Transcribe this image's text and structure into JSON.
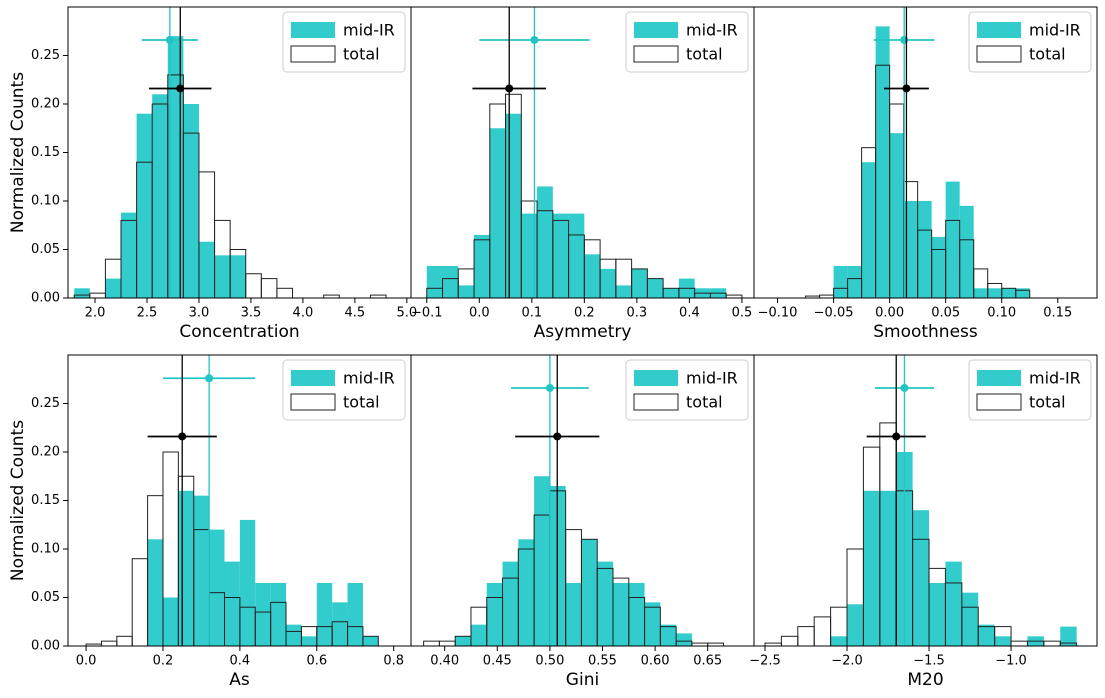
{
  "chart_data": [
    {
      "type": "histogram",
      "xlabel": "Concentration",
      "ylabel": "Normalized Counts",
      "xlim": [
        1.74,
        5.04
      ],
      "xticks": [
        {
          "value": 2.0,
          "label": "2.0"
        },
        2.5,
        {
          "value": 3.0,
          "label": "3.0"
        },
        3.5,
        {
          "value": 4.0,
          "label": "4.0"
        },
        4.5,
        {
          "value": 5.0,
          "label": "5.0"
        }
      ],
      "ylim": [
        0,
        0.3
      ],
      "yticks": [
        {
          "value": 0,
          "label": "0.00"
        },
        0.05,
        {
          "value": 0.1,
          "label": "0.10"
        },
        0.15,
        {
          "value": 0.2,
          "label": "0.20"
        },
        0.25
      ],
      "legend": "upper right",
      "bins": [
        1.8,
        1.95,
        2.1,
        2.25,
        2.4,
        2.55,
        2.7,
        2.85,
        3.0,
        3.15,
        3.3,
        3.45,
        3.6,
        3.75,
        3.9,
        4.05,
        4.2,
        4.35,
        4.5,
        4.65,
        4.8,
        4.95
      ],
      "series": [
        {
          "name": "mid-IR",
          "color": "#33cccc",
          "values": [
            0.01,
            0,
            0.02,
            0.088,
            0.19,
            0.21,
            0.27,
            0.2,
            0.058,
            0.044,
            0.044,
            0,
            0,
            0,
            0,
            0,
            0,
            0,
            0,
            0,
            0
          ],
          "point": {
            "x": 2.72,
            "y": 0.266,
            "xerr": 0.27
          }
        },
        {
          "name": "total",
          "color": "#222222",
          "values": [
            0.003,
            0.005,
            0.04,
            0.08,
            0.14,
            0.2,
            0.23,
            0.17,
            0.13,
            0.08,
            0.05,
            0.025,
            0.02,
            0.01,
            0,
            0,
            0.003,
            0,
            0,
            0.003,
            0
          ],
          "point": {
            "x": 2.82,
            "y": 0.216,
            "xerr": 0.3
          }
        }
      ]
    },
    {
      "type": "histogram",
      "xlabel": "Asymmetry",
      "xlim": [
        -0.13,
        0.523
      ],
      "xticks": [
        {
          "value": -0.1,
          "label": "−0.1"
        },
        {
          "value": 0,
          "label": "0.0"
        },
        0.1,
        0.2,
        0.3,
        0.4,
        0.5
      ],
      "ylim": [
        0,
        0.3
      ],
      "legend": "upper right",
      "bins": [
        -0.1,
        -0.07,
        -0.04,
        -0.01,
        0.02,
        0.05,
        0.08,
        0.11,
        0.14,
        0.17,
        0.2,
        0.23,
        0.26,
        0.29,
        0.32,
        0.35,
        0.38,
        0.41,
        0.44,
        0.47,
        0.5
      ],
      "series": [
        {
          "name": "mid-IR",
          "color": "#33cccc",
          "values": [
            0.033,
            0.033,
            0.013,
            0.065,
            0.175,
            0.19,
            0.087,
            0.115,
            0.087,
            0.087,
            0.045,
            0.03,
            0.013,
            0.03,
            0.02,
            0.01,
            0.02,
            0.01,
            0.01,
            0
          ],
          "point": {
            "x": 0.105,
            "y": 0.266,
            "xerr": 0.105
          }
        },
        {
          "name": "total",
          "color": "#222222",
          "values": [
            0.01,
            0.02,
            0.03,
            0.06,
            0.2,
            0.21,
            0.1,
            0.09,
            0.08,
            0.065,
            0.06,
            0.04,
            0.04,
            0.03,
            0.02,
            0.01,
            0.01,
            0.005,
            0.005,
            0.003
          ],
          "point": {
            "x": 0.057,
            "y": 0.216,
            "xerr": 0.07
          }
        }
      ]
    },
    {
      "type": "histogram",
      "xlabel": "Smoothness",
      "xlim": [
        -0.121,
        0.185
      ],
      "xticks": [
        {
          "value": -0.1,
          "label": "−0.10"
        },
        {
          "value": -0.05,
          "label": "−0.05"
        },
        {
          "value": 0,
          "label": "0.00"
        },
        0.05,
        {
          "value": 0.1,
          "label": "0.10"
        },
        0.15
      ],
      "ylim": [
        0,
        0.3
      ],
      "legend": "upper right",
      "bins": [
        -0.075,
        -0.0625,
        -0.05,
        -0.0375,
        -0.025,
        -0.0125,
        0,
        0.0125,
        0.025,
        0.0375,
        0.05,
        0.0625,
        0.075,
        0.0875,
        0.1,
        0.1125,
        0.125
      ],
      "series": [
        {
          "name": "mid-IR",
          "color": "#33cccc",
          "values": [
            0,
            0,
            0.033,
            0.033,
            0.14,
            0.28,
            0.17,
            0.1,
            0.1,
            0.063,
            0.12,
            0.095,
            0.01,
            0.01,
            0.01,
            0.01
          ],
          "point": {
            "x": 0.013,
            "y": 0.266,
            "xerr": 0.027
          }
        },
        {
          "name": "total",
          "color": "#222222",
          "values": [
            0.002,
            0.003,
            0.01,
            0.02,
            0.155,
            0.24,
            0.2,
            0.12,
            0.07,
            0.05,
            0.08,
            0.06,
            0.03,
            0.015,
            0.01,
            0.008
          ],
          "point": {
            "x": 0.015,
            "y": 0.216,
            "xerr": 0.02
          }
        }
      ]
    },
    {
      "type": "histogram",
      "xlabel": "As",
      "ylabel": "Normalized Counts",
      "xlim": [
        -0.047,
        0.845
      ],
      "xticks": [
        {
          "value": 0,
          "label": "0.0"
        },
        0.2,
        0.4,
        0.6,
        0.8
      ],
      "ylim": [
        0,
        0.3
      ],
      "yticks": [
        {
          "value": 0,
          "label": "0.00"
        },
        0.05,
        {
          "value": 0.1,
          "label": "0.10"
        },
        0.15,
        {
          "value": 0.2,
          "label": "0.20"
        },
        0.25
      ],
      "legend": "upper right",
      "bins": [
        0,
        0.04,
        0.08,
        0.12,
        0.16,
        0.2,
        0.24,
        0.28,
        0.32,
        0.36,
        0.4,
        0.44,
        0.48,
        0.52,
        0.56,
        0.6,
        0.64,
        0.68,
        0.72,
        0.76
      ],
      "series": [
        {
          "name": "mid-IR",
          "color": "#33cccc",
          "values": [
            0,
            0,
            0,
            0,
            0.11,
            0.05,
            0.16,
            0.155,
            0.12,
            0.087,
            0.13,
            0.065,
            0.065,
            0.022,
            0.01,
            0.065,
            0.045,
            0.065,
            0.01
          ],
          "point": {
            "x": 0.32,
            "y": 0.276,
            "xerr": 0.12
          }
        },
        {
          "name": "total",
          "color": "#222222",
          "values": [
            0.002,
            0.005,
            0.01,
            0.09,
            0.155,
            0.2,
            0.175,
            0.12,
            0.055,
            0.05,
            0.04,
            0.035,
            0.045,
            0.015,
            0.02,
            0.02,
            0.025,
            0.02,
            0.01
          ],
          "point": {
            "x": 0.25,
            "y": 0.216,
            "xerr": 0.09
          }
        }
      ]
    },
    {
      "type": "histogram",
      "xlabel": "Gini",
      "xlim": [
        0.368,
        0.694
      ],
      "xticks": [
        {
          "value": 0.4,
          "label": "0.40"
        },
        0.45,
        {
          "value": 0.5,
          "label": "0.50"
        },
        0.55,
        {
          "value": 0.6,
          "label": "0.60"
        },
        0.65
      ],
      "ylim": [
        0,
        0.3
      ],
      "legend": "upper right",
      "bins": [
        0.38,
        0.395,
        0.41,
        0.425,
        0.44,
        0.455,
        0.47,
        0.485,
        0.5,
        0.515,
        0.53,
        0.545,
        0.56,
        0.575,
        0.59,
        0.605,
        0.62,
        0.635,
        0.65,
        0.665
      ],
      "series": [
        {
          "name": "mid-IR",
          "color": "#33cccc",
          "values": [
            0,
            0,
            0.01,
            0.022,
            0.065,
            0.087,
            0.11,
            0.175,
            0.165,
            0.065,
            0.11,
            0.087,
            0.065,
            0.065,
            0.045,
            0.022,
            0.013,
            0,
            0
          ],
          "point": {
            "x": 0.5,
            "y": 0.266,
            "xerr": 0.037
          }
        },
        {
          "name": "total",
          "color": "#222222",
          "values": [
            0.005,
            0.005,
            0.01,
            0.04,
            0.05,
            0.07,
            0.1,
            0.135,
            0.16,
            0.12,
            0.11,
            0.08,
            0.07,
            0.05,
            0.04,
            0.02,
            0.005,
            0.003,
            0.003
          ],
          "point": {
            "x": 0.507,
            "y": 0.216,
            "xerr": 0.04
          }
        }
      ]
    },
    {
      "type": "histogram",
      "xlabel": "M20",
      "xlim": [
        -2.567,
        -0.476
      ],
      "xticks": [
        {
          "value": -2.5,
          "label": "−2.5"
        },
        {
          "value": -2.0,
          "label": "−2.0"
        },
        {
          "value": -1.5,
          "label": "−1.5"
        },
        {
          "value": -1.0,
          "label": "−1.0"
        }
      ],
      "ylim": [
        0,
        0.3
      ],
      "legend": "upper right",
      "bins": [
        -2.5,
        -2.4,
        -2.3,
        -2.2,
        -2.1,
        -2.0,
        -1.9,
        -1.8,
        -1.7,
        -1.6,
        -1.5,
        -1.4,
        -1.3,
        -1.2,
        -1.1,
        -1.0,
        -0.9,
        -0.8,
        -0.7,
        -0.6
      ],
      "series": [
        {
          "name": "mid-IR",
          "color": "#33cccc",
          "values": [
            0,
            0,
            0,
            0,
            0.01,
            0.043,
            0.16,
            0.16,
            0.2,
            0.14,
            0.065,
            0.087,
            0.055,
            0.022,
            0.01,
            0,
            0.01,
            0,
            0.02
          ],
          "point": {
            "x": -1.65,
            "y": 0.266,
            "xerr": 0.18
          }
        },
        {
          "name": "total",
          "color": "#222222",
          "values": [
            0.003,
            0.01,
            0.02,
            0.03,
            0.04,
            0.1,
            0.205,
            0.23,
            0.16,
            0.11,
            0.08,
            0.065,
            0.04,
            0.02,
            0.02,
            0.005,
            0.005,
            0.005,
            0.003
          ],
          "point": {
            "x": -1.7,
            "y": 0.216,
            "xerr": 0.18
          }
        }
      ]
    }
  ]
}
